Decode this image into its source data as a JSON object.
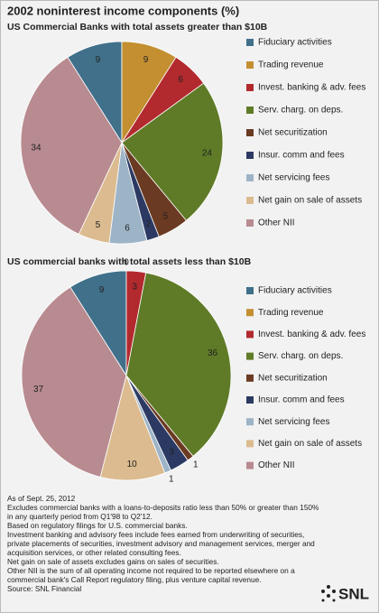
{
  "title": "2002 noninterest income components (%)",
  "chart_data": [
    {
      "type": "pie",
      "title": "US Commercial Banks with total assets greater than $10B",
      "categories": [
        "Fiduciary activities",
        "Trading revenue",
        "Invest. banking & adv. fees",
        "Serv. charg. on deps.",
        "Net securitization",
        "Insur. comm and fees",
        "Net servicing fees",
        "Net gain on sale of assets",
        "Other NII"
      ],
      "values": [
        9,
        9,
        6,
        24,
        5,
        2,
        6,
        5,
        34
      ],
      "colors": [
        "#41708a",
        "#c38f31",
        "#b22a2e",
        "#5f7b27",
        "#6b3a22",
        "#2c3a63",
        "#9db4c7",
        "#dbbb8f",
        "#b88b90"
      ]
    },
    {
      "type": "pie",
      "title": "US commercial banks with total assets less than $10B",
      "categories": [
        "Fiduciary activities",
        "Trading revenue",
        "Invest. banking & adv. fees",
        "Serv. charg. on deps.",
        "Net securitization",
        "Insur. comm and fees",
        "Net servicing fees",
        "Net gain on sale of assets",
        "Other NII"
      ],
      "values": [
        9,
        0,
        3,
        36,
        1,
        3,
        1,
        10,
        37
      ],
      "colors": [
        "#41708a",
        "#c38f31",
        "#b22a2e",
        "#5f7b27",
        "#6b3a22",
        "#2c3a63",
        "#9db4c7",
        "#dbbb8f",
        "#b88b90"
      ]
    }
  ],
  "footnotes": [
    "As of Sept. 25, 2012",
    "Excludes commercial banks with a loans-to-deposits ratio less than 50% or greater than 150%",
    "in any quarterly period from Q1'98 to Q2'12.",
    "Based on regulatory filings for U.S. commercial banks.",
    "Investment banking and advisory fees include fees earned from underwriting of securities,",
    "private placements of securities, investment advisory and management services, merger and",
    "acquisition services, or other related consulting fees.",
    "Net gain on sale of assets excludes gains on sales of securities.",
    "Other NII is the sum of all operating income not required to be reported elsewhere on a",
    "commercial bank's Call Report regulatory filing, plus venture capital revenue.",
    "Source: SNL Financial"
  ],
  "logo": "SNL"
}
